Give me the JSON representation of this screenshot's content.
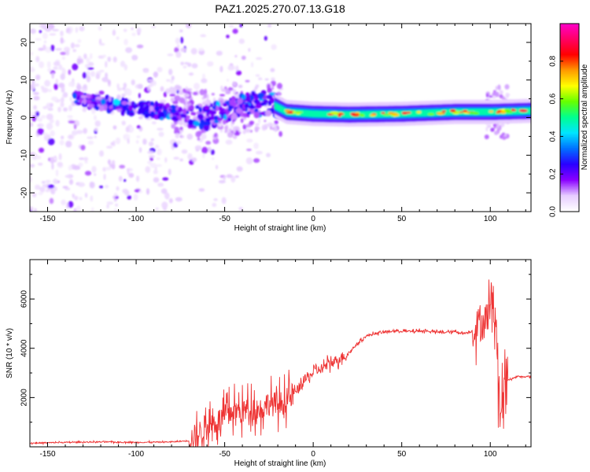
{
  "figure": {
    "title": "PAZ1.2025.270.07.13.G18"
  },
  "chart_data": [
    {
      "type": "heatmap",
      "title": "PAZ1.2025.270.07.13.G18",
      "xlabel": "Height of straight line (km)",
      "ylabel": "Frequency (Hz)",
      "xlim": [
        -160,
        123
      ],
      "ylim": [
        -25,
        25
      ],
      "x_ticks": [
        -150,
        -100,
        -50,
        0,
        50,
        100
      ],
      "y_ticks": [
        -20,
        -10,
        0,
        10,
        20
      ],
      "colorbar": {
        "label": "Normalized spectral amplitude",
        "range": [
          0,
          1
        ],
        "ticks": [
          0.0,
          0.2,
          0.4,
          0.6,
          0.8
        ],
        "colormap": [
          "#ffffff",
          "#e6ccff",
          "#8a00ff",
          "#2a00ff",
          "#0070ff",
          "#00e5ff",
          "#00ff90",
          "#66ff00",
          "#ffff00",
          "#ff9900",
          "#ff0000",
          "#ff0066",
          "#ff00cc"
        ]
      },
      "ridge": [
        {
          "x": -135,
          "y": 5
        },
        {
          "x": -120,
          "y": 4
        },
        {
          "x": -100,
          "y": 2.5
        },
        {
          "x": -80,
          "y": 1.5
        },
        {
          "x": -60,
          "y": 0
        },
        {
          "x": -40,
          "y": 3
        },
        {
          "x": -25,
          "y": 4
        },
        {
          "x": -15,
          "y": 1.5
        },
        {
          "x": 0,
          "y": 1
        },
        {
          "x": 20,
          "y": 0.8
        },
        {
          "x": 50,
          "y": 1
        },
        {
          "x": 80,
          "y": 1.5
        },
        {
          "x": 100,
          "y": 1.5
        },
        {
          "x": 123,
          "y": 1.8
        }
      ],
      "grid": false
    },
    {
      "type": "line",
      "xlabel": "Height of straight line (km)",
      "ylabel": "SNR (10 * v/v)",
      "xlim": [
        -160,
        123
      ],
      "ylim": [
        0,
        7600
      ],
      "x_ticks": [
        -150,
        -100,
        -50,
        0,
        50,
        100
      ],
      "y_ticks": [
        2000,
        4000,
        6000
      ],
      "line_color": "#ee3333",
      "series": [
        {
          "x": [
            -160,
            -140,
            -120,
            -100,
            -80,
            -70,
            -65,
            -60,
            -55,
            -50,
            -45,
            -40,
            -35,
            -30,
            -25,
            -20,
            -15,
            -10,
            -5,
            0,
            5,
            10,
            15,
            20,
            25,
            30,
            35,
            40,
            45,
            50,
            55,
            60,
            65,
            70,
            75,
            80,
            85,
            90,
            92,
            95,
            98,
            100,
            102,
            104,
            106,
            108,
            110,
            115,
            123
          ],
          "y": [
            150,
            180,
            200,
            180,
            200,
            250,
            500,
            900,
            1000,
            1200,
            1500,
            1400,
            1600,
            1500,
            1800,
            1700,
            1900,
            2200,
            2700,
            3000,
            3200,
            3400,
            3600,
            3800,
            4200,
            4500,
            4600,
            4650,
            4700,
            4700,
            4680,
            4700,
            4700,
            4650,
            4650,
            4680,
            4600,
            4700,
            4900,
            5000,
            5200,
            5800,
            6000,
            4000,
            1500,
            3200,
            2700,
            2850,
            2850
          ]
        }
      ],
      "grid": false
    }
  ]
}
